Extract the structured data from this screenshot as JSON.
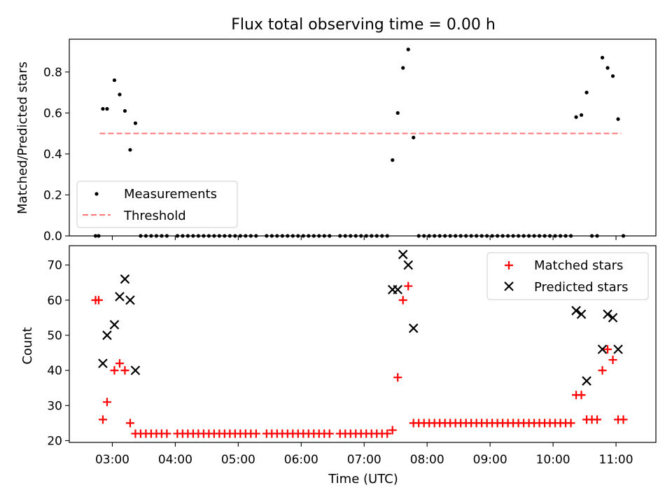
{
  "title": "Flux total observing time = 0.00 h",
  "x_axis": {
    "label": "Time (UTC)",
    "tick_labels": [
      "03:00",
      "04:00",
      "05:00",
      "06:00",
      "07:00",
      "08:00",
      "09:00",
      "10:00",
      "11:00"
    ]
  },
  "chart_data": [
    {
      "type": "scatter",
      "ylabel": "Matched/Predicted stars",
      "xlim": [
        "02:19",
        "11:38"
      ],
      "ylim": [
        0.0,
        0.96
      ],
      "yticks": [
        "0.0",
        "0.2",
        "0.4",
        "0.6",
        "0.8"
      ],
      "threshold": {
        "name": "Threshold",
        "value": 0.5,
        "x_range": [
          "02:48",
          "11:05"
        ],
        "color": "#ff7777"
      },
      "legend_position": "lower-left",
      "series": [
        {
          "name": "Measurements",
          "color": "#000000",
          "points": [
            [
              "02:44",
              0.0
            ],
            [
              "02:47",
              0.0
            ],
            [
              "02:51",
              0.62
            ],
            [
              "02:55",
              0.62
            ],
            [
              "03:02",
              0.76
            ],
            [
              "03:07",
              0.69
            ],
            [
              "03:12",
              0.61
            ],
            [
              "03:17",
              0.42
            ],
            [
              "03:22",
              0.55
            ],
            [
              "03:27",
              0.0
            ],
            [
              "03:32",
              0.0
            ],
            [
              "03:37",
              0.0
            ],
            [
              "03:42",
              0.0
            ],
            [
              "03:47",
              0.0
            ],
            [
              "03:52",
              0.0
            ],
            [
              "04:02",
              0.0
            ],
            [
              "04:07",
              0.0
            ],
            [
              "04:12",
              0.0
            ],
            [
              "04:17",
              0.0
            ],
            [
              "04:22",
              0.0
            ],
            [
              "04:27",
              0.0
            ],
            [
              "04:32",
              0.0
            ],
            [
              "04:37",
              0.0
            ],
            [
              "04:42",
              0.0
            ],
            [
              "04:47",
              0.0
            ],
            [
              "04:52",
              0.0
            ],
            [
              "04:57",
              0.0
            ],
            [
              "05:02",
              0.0
            ],
            [
              "05:07",
              0.0
            ],
            [
              "05:12",
              0.0
            ],
            [
              "05:17",
              0.0
            ],
            [
              "05:27",
              0.0
            ],
            [
              "05:32",
              0.0
            ],
            [
              "05:37",
              0.0
            ],
            [
              "05:42",
              0.0
            ],
            [
              "05:47",
              0.0
            ],
            [
              "05:52",
              0.0
            ],
            [
              "05:57",
              0.0
            ],
            [
              "06:02",
              0.0
            ],
            [
              "06:07",
              0.0
            ],
            [
              "06:12",
              0.0
            ],
            [
              "06:17",
              0.0
            ],
            [
              "06:22",
              0.0
            ],
            [
              "06:27",
              0.0
            ],
            [
              "06:37",
              0.0
            ],
            [
              "06:42",
              0.0
            ],
            [
              "06:47",
              0.0
            ],
            [
              "06:52",
              0.0
            ],
            [
              "06:57",
              0.0
            ],
            [
              "07:02",
              0.0
            ],
            [
              "07:07",
              0.0
            ],
            [
              "07:12",
              0.0
            ],
            [
              "07:17",
              0.0
            ],
            [
              "07:22",
              0.0
            ],
            [
              "07:27",
              0.37
            ],
            [
              "07:32",
              0.6
            ],
            [
              "07:37",
              0.82
            ],
            [
              "07:42",
              0.91
            ],
            [
              "07:47",
              0.48
            ],
            [
              "07:52",
              0.0
            ],
            [
              "07:57",
              0.0
            ],
            [
              "08:02",
              0.0
            ],
            [
              "08:07",
              0.0
            ],
            [
              "08:12",
              0.0
            ],
            [
              "08:17",
              0.0
            ],
            [
              "08:22",
              0.0
            ],
            [
              "08:27",
              0.0
            ],
            [
              "08:32",
              0.0
            ],
            [
              "08:37",
              0.0
            ],
            [
              "08:42",
              0.0
            ],
            [
              "08:47",
              0.0
            ],
            [
              "08:52",
              0.0
            ],
            [
              "08:57",
              0.0
            ],
            [
              "09:02",
              0.0
            ],
            [
              "09:07",
              0.0
            ],
            [
              "09:12",
              0.0
            ],
            [
              "09:17",
              0.0
            ],
            [
              "09:22",
              0.0
            ],
            [
              "09:27",
              0.0
            ],
            [
              "09:32",
              0.0
            ],
            [
              "09:37",
              0.0
            ],
            [
              "09:42",
              0.0
            ],
            [
              "09:47",
              0.0
            ],
            [
              "09:52",
              0.0
            ],
            [
              "09:57",
              0.0
            ],
            [
              "10:02",
              0.0
            ],
            [
              "10:07",
              0.0
            ],
            [
              "10:12",
              0.0
            ],
            [
              "10:17",
              0.0
            ],
            [
              "10:22",
              0.58
            ],
            [
              "10:27",
              0.59
            ],
            [
              "10:32",
              0.7
            ],
            [
              "10:37",
              0.0
            ],
            [
              "10:42",
              0.0
            ],
            [
              "10:47",
              0.87
            ],
            [
              "10:52",
              0.82
            ],
            [
              "10:57",
              0.78
            ],
            [
              "11:02",
              0.57
            ],
            [
              "11:07",
              0.0
            ]
          ]
        }
      ]
    },
    {
      "type": "scatter",
      "ylabel": "Count",
      "xlim": [
        "02:19",
        "11:38"
      ],
      "ylim": [
        19.5,
        75.5
      ],
      "yticks": [
        "20",
        "30",
        "40",
        "50",
        "60",
        "70"
      ],
      "legend_position": "upper-right",
      "series": [
        {
          "name": "Matched stars",
          "color": "#ff0000",
          "marker": "plus",
          "points": [
            [
              "02:44",
              60
            ],
            [
              "02:47",
              60
            ],
            [
              "02:51",
              26
            ],
            [
              "02:55",
              31
            ],
            [
              "03:02",
              40
            ],
            [
              "03:07",
              42
            ],
            [
              "03:12",
              40
            ],
            [
              "03:17",
              25
            ],
            [
              "03:22",
              22
            ],
            [
              "03:27",
              22
            ],
            [
              "03:32",
              22
            ],
            [
              "03:37",
              22
            ],
            [
              "03:42",
              22
            ],
            [
              "03:47",
              22
            ],
            [
              "03:52",
              22
            ],
            [
              "04:02",
              22
            ],
            [
              "04:07",
              22
            ],
            [
              "04:12",
              22
            ],
            [
              "04:17",
              22
            ],
            [
              "04:22",
              22
            ],
            [
              "04:27",
              22
            ],
            [
              "04:32",
              22
            ],
            [
              "04:37",
              22
            ],
            [
              "04:42",
              22
            ],
            [
              "04:47",
              22
            ],
            [
              "04:52",
              22
            ],
            [
              "04:57",
              22
            ],
            [
              "05:02",
              22
            ],
            [
              "05:07",
              22
            ],
            [
              "05:12",
              22
            ],
            [
              "05:17",
              22
            ],
            [
              "05:27",
              22
            ],
            [
              "05:32",
              22
            ],
            [
              "05:37",
              22
            ],
            [
              "05:42",
              22
            ],
            [
              "05:47",
              22
            ],
            [
              "05:52",
              22
            ],
            [
              "05:57",
              22
            ],
            [
              "06:02",
              22
            ],
            [
              "06:07",
              22
            ],
            [
              "06:12",
              22
            ],
            [
              "06:17",
              22
            ],
            [
              "06:22",
              22
            ],
            [
              "06:27",
              22
            ],
            [
              "06:37",
              22
            ],
            [
              "06:42",
              22
            ],
            [
              "06:47",
              22
            ],
            [
              "06:52",
              22
            ],
            [
              "06:57",
              22
            ],
            [
              "07:02",
              22
            ],
            [
              "07:07",
              22
            ],
            [
              "07:12",
              22
            ],
            [
              "07:17",
              22
            ],
            [
              "07:22",
              22
            ],
            [
              "07:27",
              23
            ],
            [
              "07:32",
              38
            ],
            [
              "07:37",
              60
            ],
            [
              "07:42",
              64
            ],
            [
              "07:47",
              25
            ],
            [
              "07:52",
              25
            ],
            [
              "07:57",
              25
            ],
            [
              "08:02",
              25
            ],
            [
              "08:07",
              25
            ],
            [
              "08:12",
              25
            ],
            [
              "08:17",
              25
            ],
            [
              "08:22",
              25
            ],
            [
              "08:27",
              25
            ],
            [
              "08:32",
              25
            ],
            [
              "08:37",
              25
            ],
            [
              "08:42",
              25
            ],
            [
              "08:47",
              25
            ],
            [
              "08:52",
              25
            ],
            [
              "08:57",
              25
            ],
            [
              "09:02",
              25
            ],
            [
              "09:07",
              25
            ],
            [
              "09:12",
              25
            ],
            [
              "09:17",
              25
            ],
            [
              "09:22",
              25
            ],
            [
              "09:27",
              25
            ],
            [
              "09:32",
              25
            ],
            [
              "09:37",
              25
            ],
            [
              "09:42",
              25
            ],
            [
              "09:47",
              25
            ],
            [
              "09:52",
              25
            ],
            [
              "09:57",
              25
            ],
            [
              "10:02",
              25
            ],
            [
              "10:07",
              25
            ],
            [
              "10:12",
              25
            ],
            [
              "10:17",
              25
            ],
            [
              "10:22",
              33
            ],
            [
              "10:27",
              33
            ],
            [
              "10:32",
              26
            ],
            [
              "10:37",
              26
            ],
            [
              "10:42",
              26
            ],
            [
              "10:47",
              40
            ],
            [
              "10:52",
              46
            ],
            [
              "10:57",
              43
            ],
            [
              "11:02",
              26
            ],
            [
              "11:07",
              26
            ]
          ]
        },
        {
          "name": "Predicted stars",
          "color": "#000000",
          "marker": "x",
          "points": [
            [
              "02:51",
              42
            ],
            [
              "02:55",
              50
            ],
            [
              "03:02",
              53
            ],
            [
              "03:07",
              61
            ],
            [
              "03:12",
              66
            ],
            [
              "03:17",
              60
            ],
            [
              "03:22",
              40
            ],
            [
              "07:27",
              63
            ],
            [
              "07:32",
              63
            ],
            [
              "07:37",
              73
            ],
            [
              "07:42",
              70
            ],
            [
              "07:47",
              52
            ],
            [
              "10:22",
              57
            ],
            [
              "10:27",
              56
            ],
            [
              "10:32",
              37
            ],
            [
              "10:47",
              46
            ],
            [
              "10:52",
              56
            ],
            [
              "10:57",
              55
            ],
            [
              "11:02",
              46
            ]
          ]
        }
      ]
    }
  ]
}
